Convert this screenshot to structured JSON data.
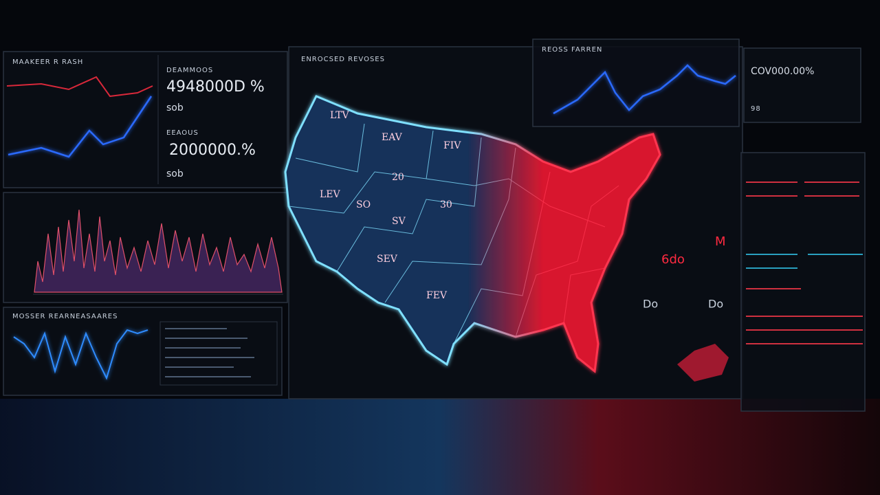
{
  "panel_left_top": {
    "title": "MAAKEER R RASH",
    "stat_1_label": "DEAMMOOS",
    "stat_1_value": "4948000D %",
    "stat_1_sub": "sob",
    "stat_2_label": "EEAOUS",
    "stat_2_value": "2000000.%",
    "stat_2_sub": "sob"
  },
  "panel_left_bottom": {
    "title": "MOSSER REARNEASAARES"
  },
  "map_panel": {
    "title": "ENROCSED REVOSES",
    "labels": [
      "LTV",
      "EAV",
      "FIV",
      "20",
      "LEV",
      "SO",
      "30",
      "SV",
      "SEV",
      "FEV"
    ]
  },
  "panel_top_right": {
    "title": "REOSS FARREN",
    "kpi": "COV000.00%",
    "kpi_sub": "98"
  },
  "panel_right": {
    "labels": [
      "6do",
      "Do",
      "M",
      "Do"
    ]
  }
}
